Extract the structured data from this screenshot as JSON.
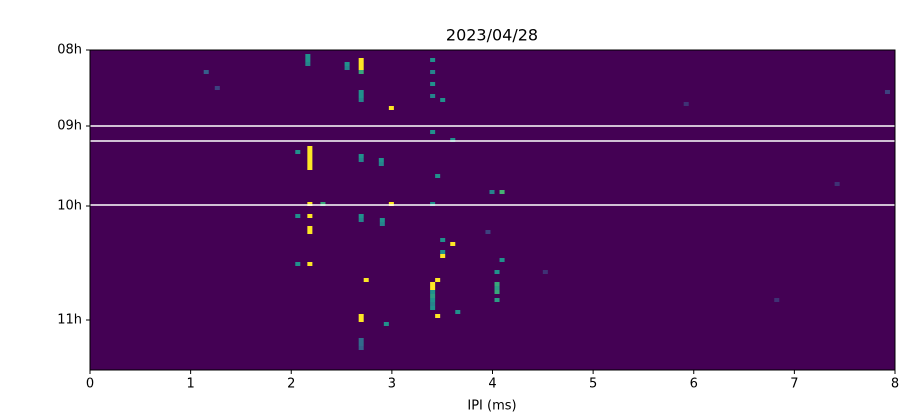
{
  "chart_data": {
    "type": "heatmap",
    "title": "2023/04/28",
    "xlabel": "IPI (ms)",
    "xlim": [
      0,
      8
    ],
    "xticks": [
      0,
      1,
      2,
      3,
      4,
      5,
      6,
      7,
      8
    ],
    "ylim": [
      80,
      0
    ],
    "yticks": [
      {
        "value": 0,
        "label": "08h"
      },
      {
        "value": 19,
        "label": "09h"
      },
      {
        "value": 39,
        "label": "10h"
      },
      {
        "value": 67.5,
        "label": "11h"
      }
    ],
    "colormap": "viridis",
    "vmin": 0,
    "vmax": 1,
    "background": 0,
    "cell_width": 0.05,
    "cell_height": 1,
    "hlines": [
      19,
      22.75,
      38.75
    ],
    "hline_color": "#ffffff",
    "cells": [
      [
        2.14,
        1,
        0.5
      ],
      [
        2.14,
        2,
        0.5
      ],
      [
        2.14,
        3,
        0.45
      ],
      [
        2.67,
        2,
        1
      ],
      [
        2.67,
        3,
        1
      ],
      [
        2.67,
        4,
        1
      ],
      [
        2.67,
        5,
        0.6
      ],
      [
        2.67,
        10,
        0.5
      ],
      [
        2.67,
        11,
        0.5
      ],
      [
        2.67,
        12,
        0.45
      ],
      [
        2.53,
        3,
        0.5
      ],
      [
        2.53,
        4,
        0.45
      ],
      [
        2.97,
        14,
        1
      ],
      [
        3.38,
        2,
        0.5
      ],
      [
        3.38,
        5,
        0.45
      ],
      [
        3.38,
        8,
        0.5
      ],
      [
        3.38,
        11,
        0.45
      ],
      [
        3.48,
        12,
        0.5
      ],
      [
        3.38,
        20,
        0.5
      ],
      [
        3.58,
        22,
        0.5
      ],
      [
        2.16,
        24,
        1
      ],
      [
        2.16,
        25,
        1
      ],
      [
        2.16,
        26,
        1
      ],
      [
        2.16,
        27,
        1
      ],
      [
        2.16,
        28,
        1
      ],
      [
        2.16,
        29,
        1
      ],
      [
        2.04,
        25,
        0.5
      ],
      [
        2.67,
        26,
        0.5
      ],
      [
        2.67,
        27,
        0.45
      ],
      [
        2.87,
        27,
        0.5
      ],
      [
        2.87,
        28,
        0.45
      ],
      [
        3.43,
        31,
        0.5
      ],
      [
        4.07,
        35,
        0.65
      ],
      [
        3.97,
        35,
        0.45
      ],
      [
        2.97,
        38,
        1
      ],
      [
        2.16,
        38,
        1
      ],
      [
        2.29,
        38,
        0.6
      ],
      [
        3.38,
        38,
        0.5
      ],
      [
        2.16,
        41,
        1
      ],
      [
        2.16,
        44,
        1
      ],
      [
        2.16,
        45,
        1
      ],
      [
        2.04,
        41,
        0.5
      ],
      [
        2.67,
        41,
        0.5
      ],
      [
        2.67,
        42,
        0.45
      ],
      [
        2.88,
        42,
        0.5
      ],
      [
        2.88,
        43,
        0.45
      ],
      [
        3.48,
        47,
        0.5
      ],
      [
        3.58,
        48,
        1
      ],
      [
        3.48,
        51,
        1
      ],
      [
        3.48,
        50,
        0.5
      ],
      [
        2.16,
        53,
        1
      ],
      [
        2.04,
        53,
        0.5
      ],
      [
        4.07,
        52,
        0.5
      ],
      [
        4.02,
        55,
        0.5
      ],
      [
        4.02,
        58,
        0.6
      ],
      [
        4.02,
        59,
        0.55
      ],
      [
        4.02,
        60,
        0.6
      ],
      [
        4.02,
        62,
        0.55
      ],
      [
        2.72,
        57,
        1
      ],
      [
        3.43,
        57,
        1
      ],
      [
        3.38,
        58,
        1
      ],
      [
        3.38,
        59,
        1
      ],
      [
        3.38,
        60,
        0.5
      ],
      [
        3.38,
        61,
        0.55
      ],
      [
        3.38,
        62,
        0.5
      ],
      [
        3.38,
        63,
        0.45
      ],
      [
        3.38,
        64,
        0.5
      ],
      [
        2.67,
        66,
        1
      ],
      [
        2.67,
        67,
        1
      ],
      [
        3.43,
        66,
        1
      ],
      [
        2.92,
        68,
        0.5
      ],
      [
        3.63,
        65,
        0.5
      ],
      [
        2.67,
        72,
        0.35
      ],
      [
        2.67,
        73,
        0.35
      ],
      [
        2.67,
        74,
        0.3
      ],
      [
        1.13,
        5,
        0.3
      ],
      [
        1.24,
        9,
        0.2
      ],
      [
        3.93,
        45,
        0.2
      ],
      [
        4.5,
        55,
        0.15
      ],
      [
        5.9,
        13,
        0.15
      ],
      [
        6.8,
        62,
        0.15
      ],
      [
        7.4,
        33,
        0.15
      ],
      [
        7.9,
        10,
        0.2
      ]
    ]
  }
}
